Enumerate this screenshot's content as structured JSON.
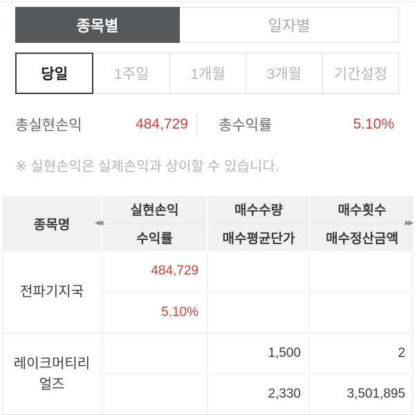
{
  "tabs": {
    "items": [
      {
        "label": "종목별",
        "active": true
      },
      {
        "label": "일자별",
        "active": false
      }
    ]
  },
  "period_filters": {
    "items": [
      {
        "label": "당일",
        "active": true
      },
      {
        "label": "1주일",
        "active": false
      },
      {
        "label": "1개월",
        "active": false
      },
      {
        "label": "3개월",
        "active": false
      },
      {
        "label": "기간설정",
        "active": false
      }
    ]
  },
  "summary": {
    "realized_label": "총실현손익",
    "realized_value": "484,729",
    "return_label": "총수익률",
    "return_value": "5.10%"
  },
  "notice": "※ 실현손익은 실제손익과 상이할 수 있습니다.",
  "table": {
    "name_header": "종목명",
    "scroll_left_icon": "◀◀",
    "scroll_right_icon": "▶▶",
    "column_headers": [
      {
        "top": "실현손익",
        "bottom": "수익률"
      },
      {
        "top": "매수수량",
        "bottom": "매수평균단가"
      },
      {
        "top": "매수횟수",
        "bottom": "매수정산금액"
      }
    ],
    "rows": [
      {
        "name": "전파기지국",
        "cells": [
          {
            "top": "484,729",
            "bottom": "5.10%"
          },
          {
            "top": "",
            "bottom": ""
          },
          {
            "top": "",
            "bottom": ""
          }
        ]
      },
      {
        "name": "레이크머티리얼즈",
        "cells": [
          {
            "top": "",
            "bottom": ""
          },
          {
            "top": "1,500",
            "bottom": "2,330"
          },
          {
            "top": "2",
            "bottom": "3,501,895"
          }
        ]
      }
    ]
  },
  "colors": {
    "accent_red": "#cd3e3c",
    "tab_active_bg": "#54585b"
  }
}
